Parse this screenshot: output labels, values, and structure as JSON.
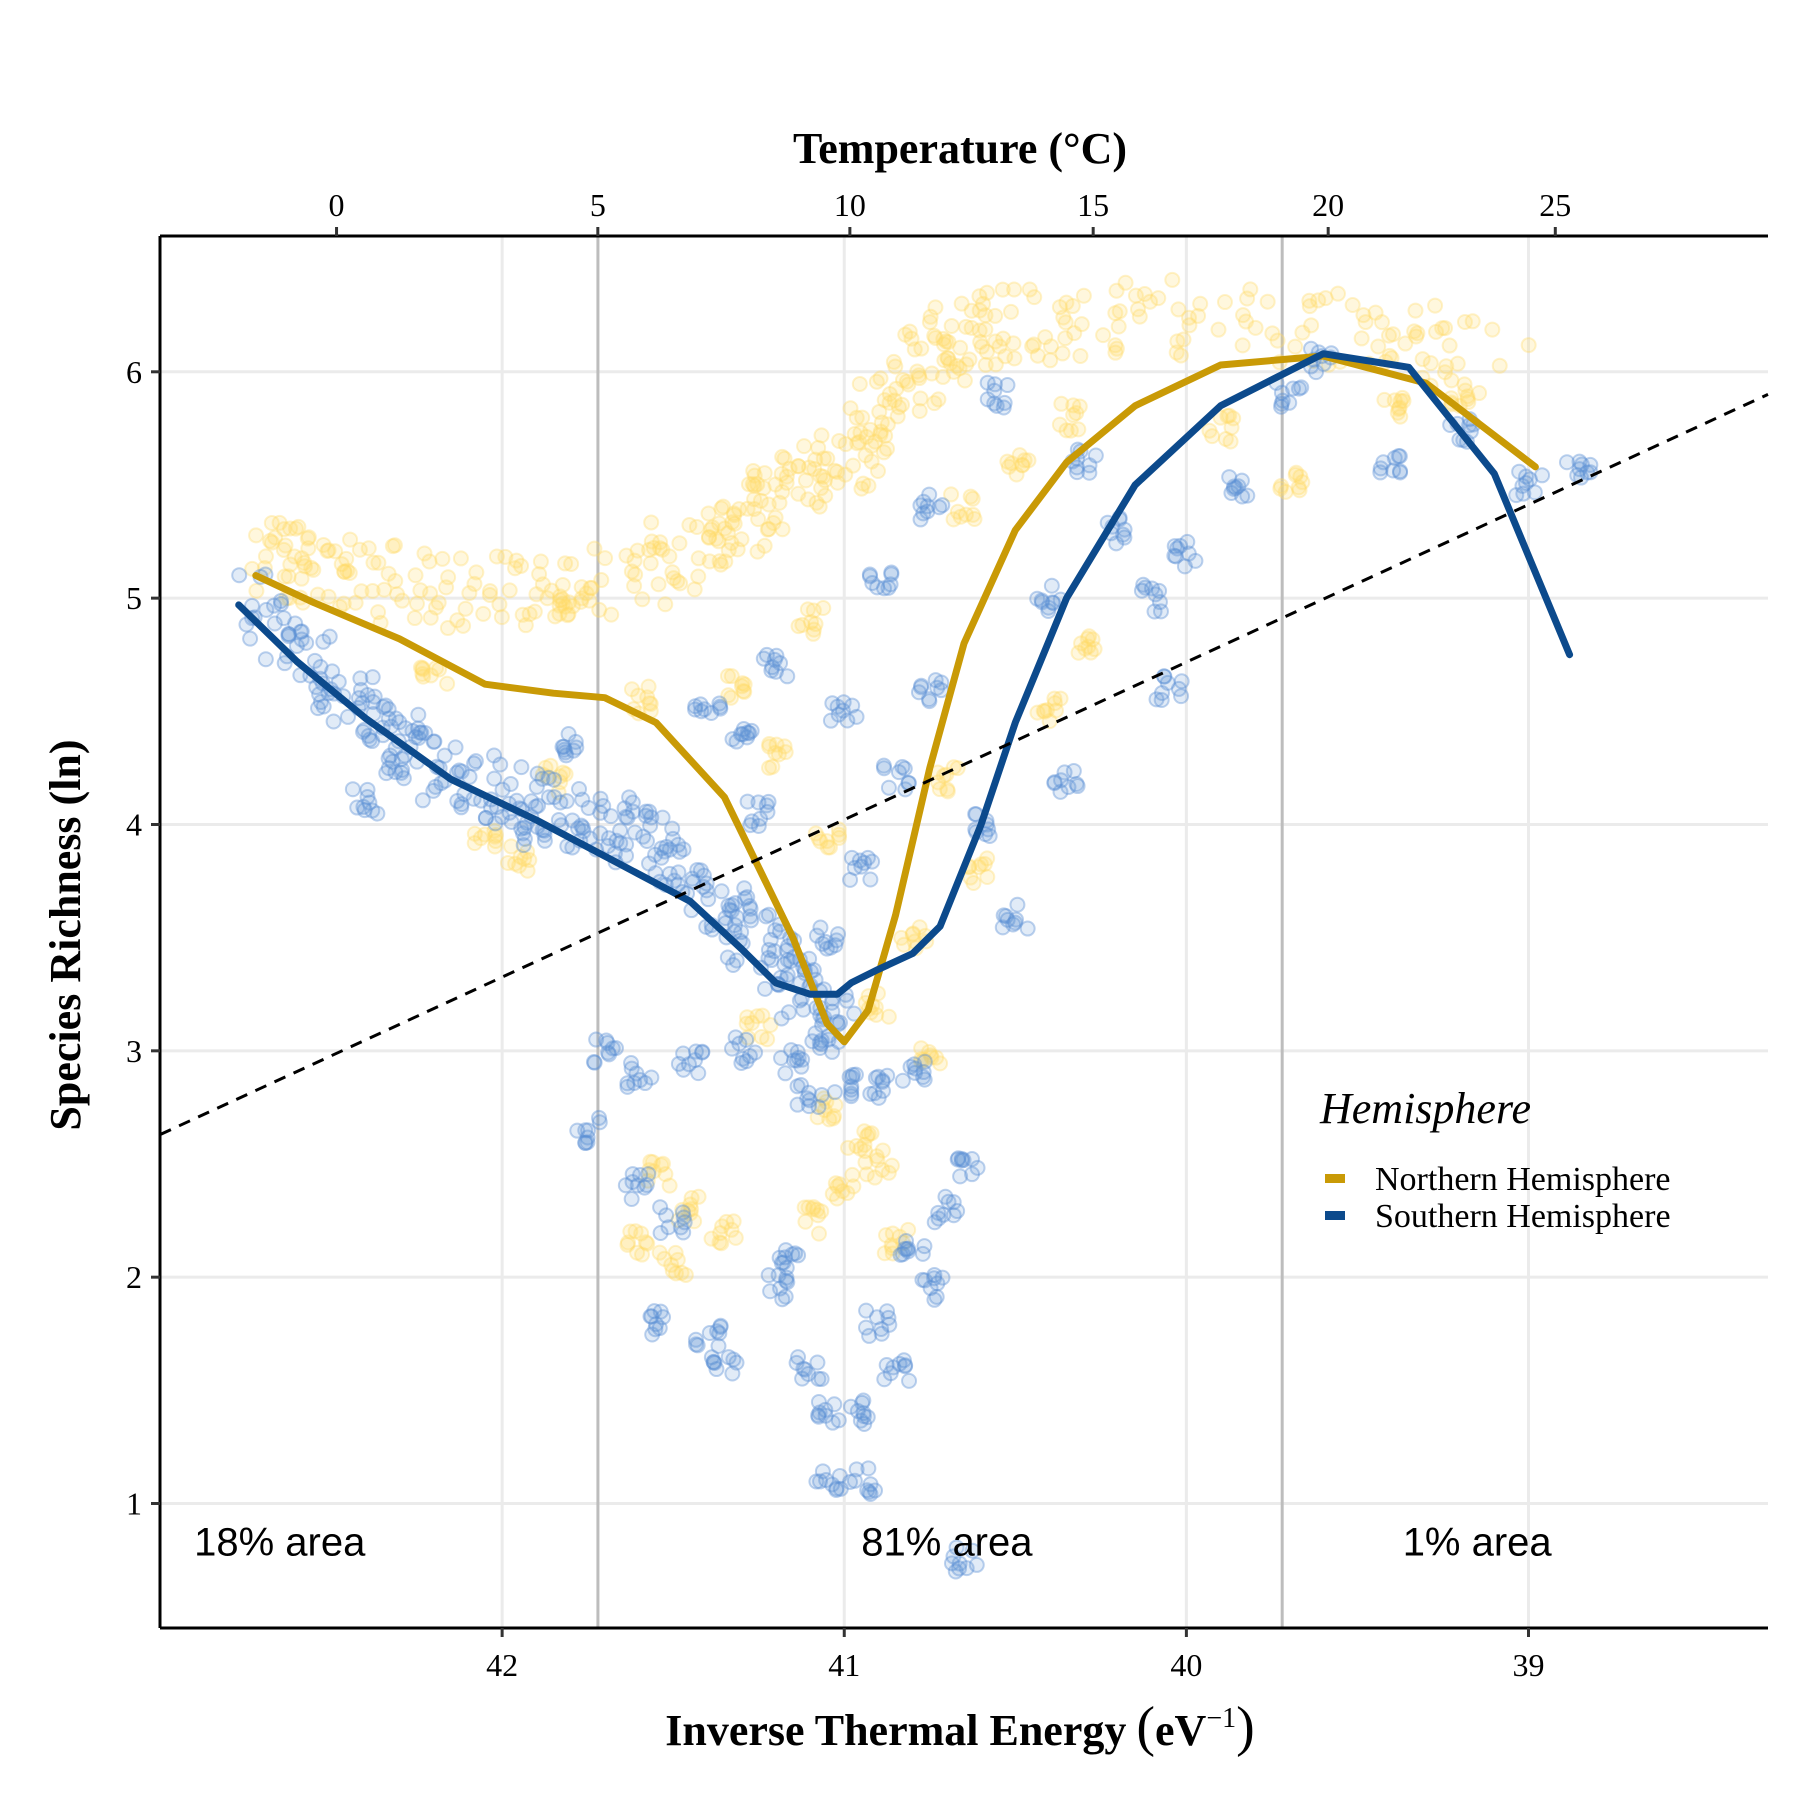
{
  "chart_data": {
    "type": "scatter",
    "title": "",
    "xlabel": "Inverse Thermal Energy",
    "xlabel_unit_base": "eV",
    "xlabel_unit_exp": "−1",
    "ylabel": "Species Richness (ln)",
    "top_axis_label": "Temperature (°C)",
    "x_reversed": true,
    "xlim": [
      43.0,
      38.3
    ],
    "ylim": [
      0.45,
      6.6
    ],
    "x_ticks": [
      42,
      41,
      40,
      39
    ],
    "y_ticks": [
      1,
      2,
      3,
      4,
      5,
      6
    ],
    "top_ticks": [
      0,
      5,
      10,
      15,
      20,
      25
    ],
    "grid": true,
    "vertical_lines_x": [
      41.72,
      39.72
    ],
    "area_annotations": [
      {
        "x": 42.65,
        "text": "18% area"
      },
      {
        "x": 40.7,
        "text": "81% area"
      },
      {
        "x": 39.15,
        "text": "1% area"
      }
    ],
    "legend": {
      "title": "Hemisphere",
      "position": "right",
      "entries": [
        {
          "label": "Northern Hemisphere",
          "color": "#C99A06"
        },
        {
          "label": "Southern Hemisphere",
          "color": "#0C4A8C"
        }
      ]
    },
    "series": [
      {
        "name": "Northern Hemisphere",
        "type": "line",
        "color": "#C99A06",
        "x": [
          42.72,
          42.55,
          42.3,
          42.05,
          41.85,
          41.7,
          41.55,
          41.35,
          41.15,
          41.05,
          41.0,
          40.93,
          40.85,
          40.75,
          40.65,
          40.5,
          40.35,
          40.15,
          39.9,
          39.6,
          39.3,
          38.98
        ],
        "y": [
          5.1,
          4.98,
          4.82,
          4.62,
          4.58,
          4.56,
          4.45,
          4.12,
          3.5,
          3.12,
          3.04,
          3.18,
          3.6,
          4.25,
          4.8,
          5.3,
          5.6,
          5.85,
          6.03,
          6.07,
          5.95,
          5.58
        ]
      },
      {
        "name": "Southern Hemisphere",
        "type": "line",
        "color": "#0C4A8C",
        "x": [
          42.77,
          42.6,
          42.4,
          42.15,
          41.9,
          41.65,
          41.45,
          41.3,
          41.2,
          41.1,
          41.02,
          40.98,
          40.9,
          40.8,
          40.72,
          40.6,
          40.5,
          40.35,
          40.15,
          39.9,
          39.6,
          39.35,
          39.1,
          38.88
        ],
        "y": [
          4.97,
          4.72,
          4.47,
          4.2,
          4.02,
          3.82,
          3.66,
          3.45,
          3.3,
          3.25,
          3.25,
          3.3,
          3.36,
          3.43,
          3.55,
          4.0,
          4.45,
          5.0,
          5.5,
          5.85,
          6.08,
          6.02,
          5.55,
          4.75
        ]
      },
      {
        "name": "",
        "type": "line",
        "style": "dashed",
        "color": "#000000",
        "x": [
          43.0,
          38.3
        ],
        "y": [
          2.63,
          5.9
        ]
      },
      {
        "name": "Northern Hemisphere",
        "type": "scatter",
        "color": "#FFD966",
        "segments": [
          [
            42.7,
            5.2
          ],
          [
            42.5,
            5.1
          ],
          [
            42.1,
            5.02
          ],
          [
            41.7,
            5.05
          ],
          [
            41.4,
            5.25
          ],
          [
            41.2,
            5.45
          ],
          [
            40.95,
            5.65
          ],
          [
            40.8,
            6.0
          ],
          [
            40.6,
            6.2
          ],
          [
            40.2,
            6.25
          ],
          [
            39.6,
            6.2
          ],
          [
            39.0,
            6.05
          ]
        ],
        "points": [
          [
            42.05,
            3.95
          ],
          [
            41.95,
            3.85
          ],
          [
            41.85,
            4.2
          ],
          [
            41.6,
            4.55
          ],
          [
            41.55,
            2.45
          ],
          [
            41.45,
            2.3
          ],
          [
            41.35,
            2.2
          ],
          [
            41.6,
            2.15
          ],
          [
            41.5,
            2.05
          ],
          [
            41.1,
            2.25
          ],
          [
            41.0,
            2.4
          ],
          [
            40.9,
            2.5
          ],
          [
            40.85,
            2.15
          ],
          [
            41.05,
            2.75
          ],
          [
            40.95,
            2.6
          ],
          [
            41.2,
            4.3
          ],
          [
            41.3,
            4.6
          ],
          [
            41.1,
            4.9
          ],
          [
            40.7,
            4.2
          ],
          [
            40.6,
            3.8
          ],
          [
            40.8,
            3.5
          ],
          [
            41.05,
            3.95
          ],
          [
            40.65,
            5.4
          ],
          [
            40.5,
            5.6
          ],
          [
            40.35,
            5.8
          ],
          [
            39.9,
            5.75
          ],
          [
            39.7,
            5.5
          ],
          [
            39.4,
            5.85
          ],
          [
            39.2,
            5.9
          ],
          [
            40.4,
            4.5
          ],
          [
            40.3,
            4.8
          ],
          [
            41.8,
            4.95
          ],
          [
            42.2,
            4.65
          ],
          [
            40.9,
            3.2
          ],
          [
            40.75,
            3.0
          ],
          [
            41.25,
            3.1
          ]
        ]
      },
      {
        "name": "Southern Hemisphere",
        "type": "scatter",
        "color": "#5B8FD4",
        "segments": [
          [
            42.75,
            5.0
          ],
          [
            42.45,
            4.55
          ],
          [
            42.2,
            4.25
          ],
          [
            41.9,
            4.1
          ],
          [
            41.6,
            3.95
          ],
          [
            41.35,
            3.6
          ],
          [
            41.15,
            3.3
          ],
          [
            41.0,
            3.1
          ]
        ],
        "points": [
          [
            41.7,
            3.0
          ],
          [
            41.6,
            2.9
          ],
          [
            41.45,
            2.95
          ],
          [
            41.3,
            3.0
          ],
          [
            41.15,
            2.95
          ],
          [
            41.1,
            2.8
          ],
          [
            41.0,
            2.85
          ],
          [
            40.9,
            2.85
          ],
          [
            40.8,
            2.9
          ],
          [
            41.75,
            2.65
          ],
          [
            41.6,
            2.4
          ],
          [
            41.5,
            2.25
          ],
          [
            41.55,
            1.8
          ],
          [
            41.4,
            1.75
          ],
          [
            41.35,
            1.6
          ],
          [
            41.2,
            1.95
          ],
          [
            41.1,
            1.6
          ],
          [
            41.05,
            1.4
          ],
          [
            40.95,
            1.4
          ],
          [
            41.05,
            1.1
          ],
          [
            40.95,
            1.1
          ],
          [
            40.9,
            1.8
          ],
          [
            40.85,
            1.6
          ],
          [
            40.75,
            1.95
          ],
          [
            41.15,
            2.1
          ],
          [
            40.8,
            2.1
          ],
          [
            40.7,
            2.3
          ],
          [
            40.65,
            2.5
          ],
          [
            41.05,
            3.5
          ],
          [
            40.95,
            3.8
          ],
          [
            40.85,
            4.2
          ],
          [
            40.75,
            4.6
          ],
          [
            41.2,
            4.7
          ],
          [
            41.3,
            4.4
          ],
          [
            41.0,
            4.5
          ],
          [
            40.6,
            4.0
          ],
          [
            40.5,
            3.6
          ],
          [
            40.4,
            5.0
          ],
          [
            40.3,
            5.6
          ],
          [
            40.2,
            5.3
          ],
          [
            40.0,
            5.2
          ],
          [
            39.85,
            5.5
          ],
          [
            39.7,
            5.9
          ],
          [
            39.6,
            6.05
          ],
          [
            39.4,
            5.6
          ],
          [
            39.2,
            5.75
          ],
          [
            39.0,
            5.5
          ],
          [
            38.85,
            5.55
          ],
          [
            41.8,
            4.35
          ],
          [
            41.9,
            3.95
          ],
          [
            42.4,
            4.1
          ],
          [
            42.3,
            4.25
          ],
          [
            40.9,
            5.1
          ],
          [
            40.75,
            5.4
          ],
          [
            40.55,
            5.9
          ],
          [
            40.1,
            5.0
          ],
          [
            40.05,
            4.6
          ],
          [
            40.35,
            4.2
          ],
          [
            41.25,
            4.05
          ],
          [
            41.4,
            4.5
          ],
          [
            40.65,
            0.75
          ]
        ]
      }
    ]
  }
}
